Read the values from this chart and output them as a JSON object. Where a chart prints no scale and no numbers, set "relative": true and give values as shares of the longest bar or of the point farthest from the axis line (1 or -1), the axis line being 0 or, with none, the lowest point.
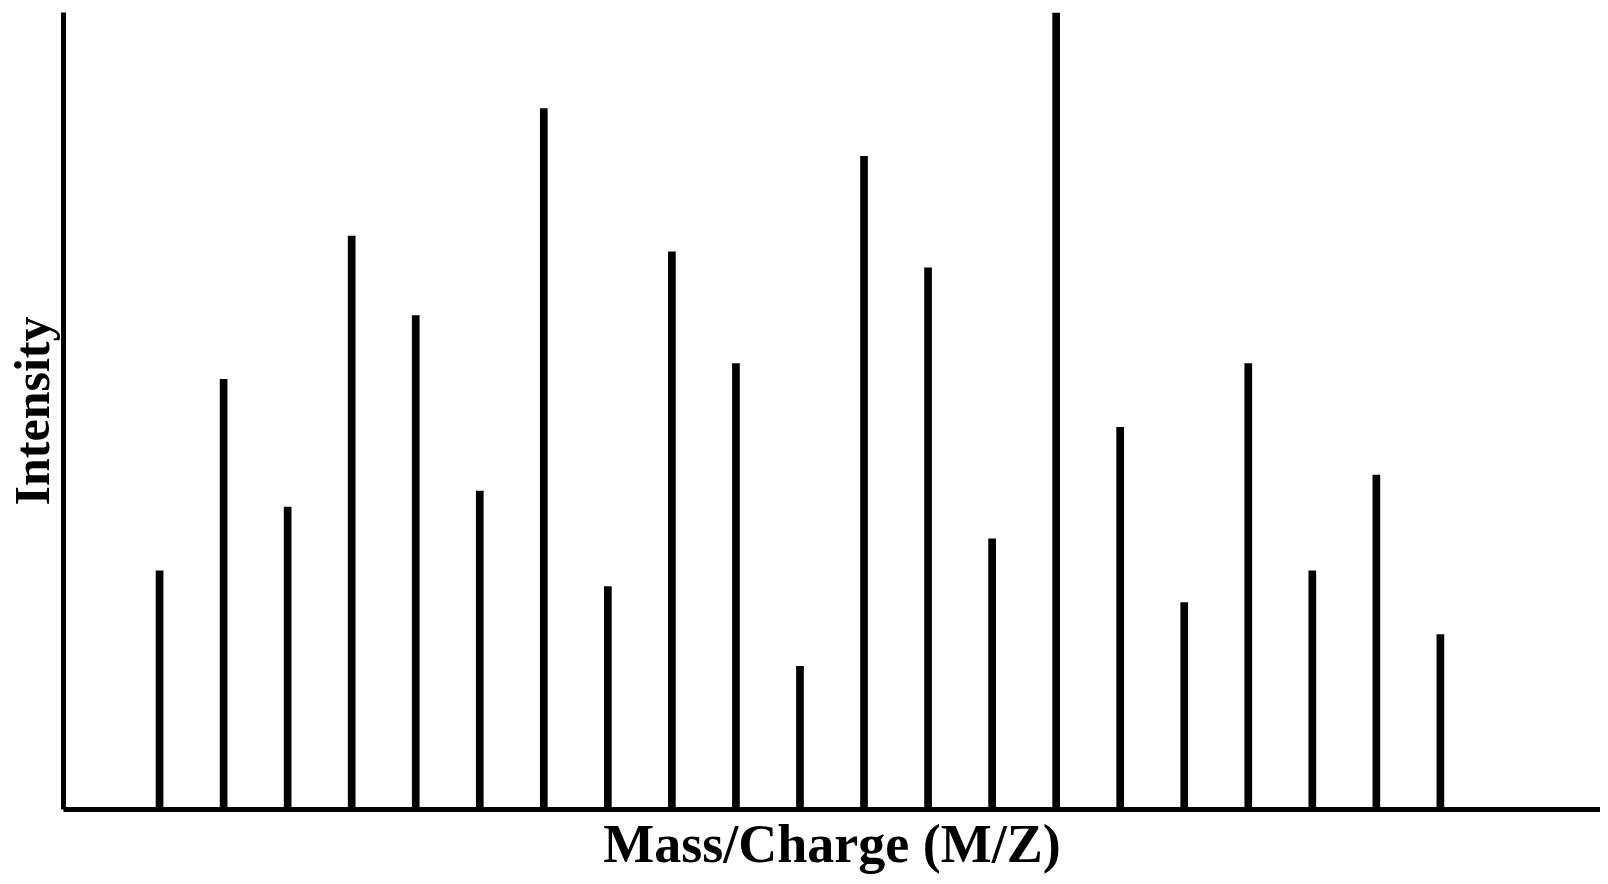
{
  "chart_data": {
    "type": "bar",
    "relative": true,
    "xlabel": "Mass/Charge (M/Z)",
    "ylabel": "Intensity",
    "color": "#000000",
    "categories": [
      null,
      null,
      null,
      null,
      null,
      null,
      null,
      null,
      null,
      null,
      null,
      null,
      null,
      null,
      null,
      null,
      null,
      null,
      null,
      null,
      null
    ],
    "values": [
      0.3,
      0.54,
      0.38,
      0.72,
      0.62,
      0.4,
      0.88,
      0.28,
      0.7,
      0.56,
      0.18,
      0.82,
      0.68,
      0.34,
      1.0,
      0.48,
      0.26,
      0.56,
      0.3,
      0.42,
      0.22
    ]
  }
}
